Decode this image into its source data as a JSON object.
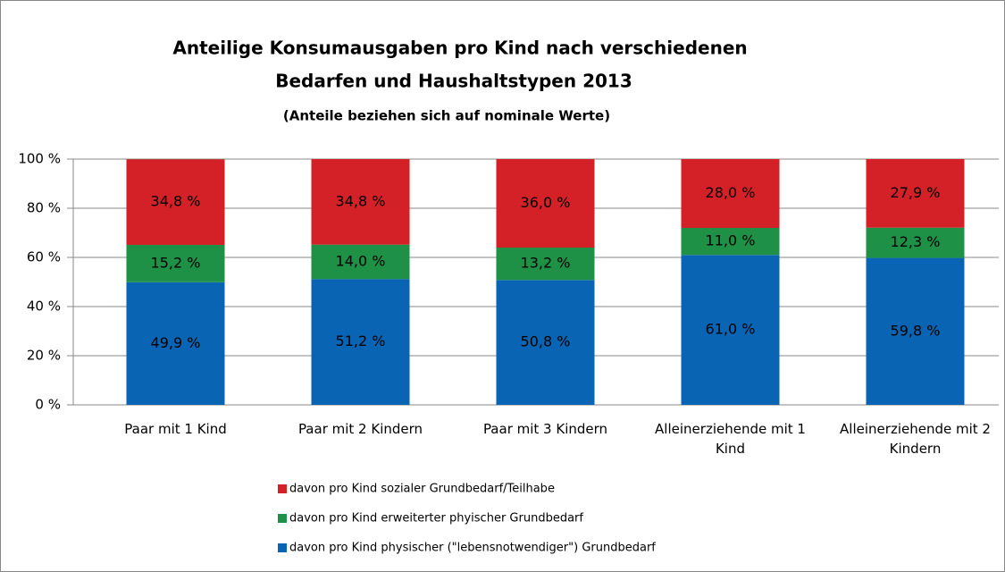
{
  "chart_data": {
    "type": "stacked_bar",
    "title": [
      "Anteilige Konsumausgaben pro Kind nach verschiedenen",
      "Bedarfen und Haushaltstypen 2013"
    ],
    "subtitle": "(Anteile beziehen sich auf nominale Werte)",
    "categories": [
      "Paar mit 1 Kind",
      "Paar mit 2 Kindern",
      "Paar mit 3 Kindern",
      "Alleinerziehende mit 1 Kind",
      "Alleinerziehende mit 2 Kindern"
    ],
    "series": [
      {
        "name": "davon pro Kind physischer (\"lebensnotwendiger\") Grundbedarf",
        "color": "#0a64b4",
        "values": [
          49.9,
          51.2,
          50.8,
          61.0,
          59.8
        ],
        "value_labels": [
          "49,9 %",
          "51,2 %",
          "50,8 %",
          "61,0 %",
          "59,8 %"
        ]
      },
      {
        "name": "davon pro Kind erweiterter phyischer Grundbedarf",
        "color": "#1e9146",
        "values": [
          15.2,
          14.0,
          13.2,
          11.0,
          12.3
        ],
        "value_labels": [
          "15,2 %",
          "14,0 %",
          "13,2 %",
          "11,0 %",
          "12,3 %"
        ]
      },
      {
        "name": "davon pro Kind sozialer Grundbedarf/Teilhabe",
        "color": "#d42027",
        "values": [
          34.8,
          34.8,
          36.0,
          28.0,
          27.9
        ],
        "value_labels": [
          "34,8 %",
          "34,8 %",
          "36,0 %",
          "28,0 %",
          "27,9 %"
        ]
      }
    ],
    "ylim": [
      0,
      100
    ],
    "yticks": [
      {
        "value": 0,
        "label": "0 %"
      },
      {
        "value": 20,
        "label": "20 %"
      },
      {
        "value": 40,
        "label": "40 %"
      },
      {
        "value": 60,
        "label": "60 %"
      },
      {
        "value": 80,
        "label": "80 %"
      },
      {
        "value": 100,
        "label": "100 %"
      }
    ],
    "grid": true
  }
}
